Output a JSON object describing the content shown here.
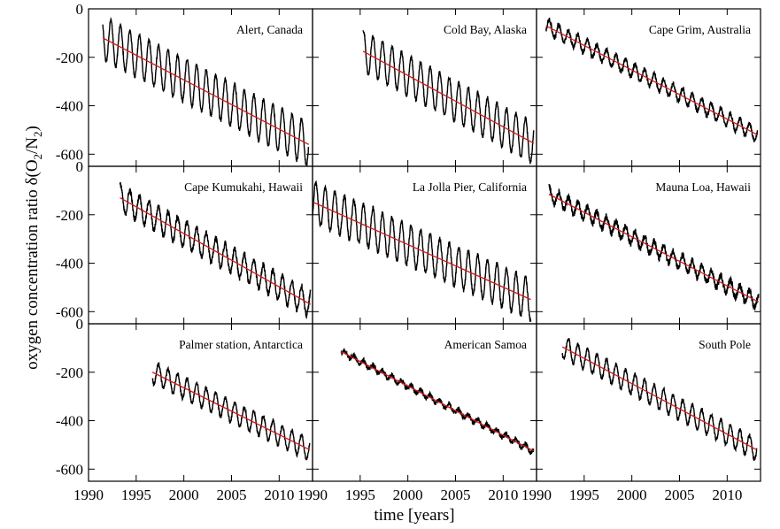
{
  "chart_data": {
    "type": "line",
    "layout": "3x3 small multiples",
    "xlabel": "time [years]",
    "ylabel_parts": {
      "main": "oxygen concentration ratio δ(O",
      "sub1": "2",
      "mid": "/N",
      "sub2": "2",
      "end": ")"
    },
    "xlim": [
      1990,
      2013.5
    ],
    "ylim": [
      -650,
      0
    ],
    "x_ticks": [
      1990,
      1995,
      2000,
      2005,
      2010
    ],
    "x_tick_labels": [
      "1990",
      "1995",
      "2000",
      "2005",
      "2010"
    ],
    "y_ticks": [
      0,
      -200,
      -400,
      -600
    ],
    "y_tick_labels": [
      "0",
      "-200",
      "-400",
      "-600"
    ],
    "grid": false,
    "series_colors": {
      "data": "#000000",
      "trend": "#d11a1a"
    },
    "panels": [
      {
        "title": "Alert, Canada",
        "x_start": 1991.5,
        "x_end": 2013.1,
        "trend": [
          [
            1991.5,
            -120
          ],
          [
            2013.1,
            -560
          ]
        ],
        "amplitude": 90,
        "noise": 8
      },
      {
        "title": "Cold Bay, Alaska",
        "x_start": 1995.3,
        "x_end": 2013.2,
        "trend": [
          [
            1995.3,
            -175
          ],
          [
            2013.2,
            -555
          ]
        ],
        "amplitude": 85,
        "noise": 8
      },
      {
        "title": "Cape Grim, Australia",
        "x_start": 1991.0,
        "x_end": 2013.2,
        "trend": [
          [
            1991.0,
            -70
          ],
          [
            2013.2,
            -520
          ]
        ],
        "amplitude": 30,
        "noise": 10
      },
      {
        "title": "Cape Kumukahi, Hawaii",
        "x_start": 1993.3,
        "x_end": 2013.3,
        "trend": [
          [
            1993.3,
            -130
          ],
          [
            2013.3,
            -570
          ]
        ],
        "amplitude": 55,
        "noise": 12
      },
      {
        "title": "La Jolla Pier, California",
        "x_start": 1989.6,
        "x_end": 2012.9,
        "trend": [
          [
            1989.6,
            -140
          ],
          [
            2012.9,
            -550
          ]
        ],
        "amplitude": 85,
        "noise": 10
      },
      {
        "title": "Mauna Loa, Hawaii",
        "x_start": 1991.3,
        "x_end": 2013.3,
        "trend": [
          [
            1991.3,
            -115
          ],
          [
            2013.3,
            -560
          ]
        ],
        "amplitude": 30,
        "noise": 14
      },
      {
        "title": "Palmer station, Antarctica",
        "x_start": 1996.7,
        "x_end": 2013.2,
        "trend": [
          [
            1996.7,
            -200
          ],
          [
            2013.2,
            -520
          ]
        ],
        "amplitude": 45,
        "noise": 8
      },
      {
        "title": "American Samoa",
        "x_start": 1993.0,
        "x_end": 2013.2,
        "trend": [
          [
            1993.0,
            -115
          ],
          [
            2013.2,
            -525
          ]
        ],
        "amplitude": 12,
        "noise": 10
      },
      {
        "title": "South Pole",
        "x_start": 1992.7,
        "x_end": 2013.1,
        "trend": [
          [
            1992.7,
            -95
          ],
          [
            2013.1,
            -520
          ]
        ],
        "amplitude": 45,
        "noise": 8
      }
    ]
  }
}
